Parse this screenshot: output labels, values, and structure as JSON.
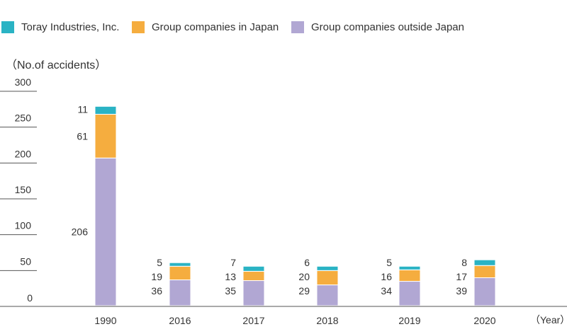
{
  "legend": [
    {
      "label": "Toray Industries, Inc.",
      "color": "#2ab3c4"
    },
    {
      "label": "Group companies in Japan",
      "color": "#f5ad3f"
    },
    {
      "label": "Group companies outside Japan",
      "color": "#b1a7d3"
    }
  ],
  "unit_label": "（No.of accidents）",
  "year_label": "（Year）",
  "chart_data": {
    "type": "bar",
    "stacked": true,
    "ylabel": "（No.of accidents）",
    "xlabel": "（Year）",
    "ylim": [
      0,
      300
    ],
    "yticks": [
      0,
      50,
      100,
      150,
      200,
      250,
      300
    ],
    "categories": [
      "1990",
      "2016",
      "2017",
      "2018",
      "2019",
      "2020"
    ],
    "series": [
      {
        "name": "Group companies outside Japan",
        "color": "#b1a7d3",
        "values": [
          206,
          36,
          35,
          29,
          34,
          39
        ]
      },
      {
        "name": "Group companies in Japan",
        "color": "#f5ad3f",
        "values": [
          61,
          19,
          13,
          20,
          16,
          17
        ]
      },
      {
        "name": "Toray Industries, Inc.",
        "color": "#2ab3c4",
        "values": [
          11,
          5,
          7,
          6,
          5,
          8
        ]
      }
    ],
    "grid": false,
    "legend_position": "top-left"
  }
}
